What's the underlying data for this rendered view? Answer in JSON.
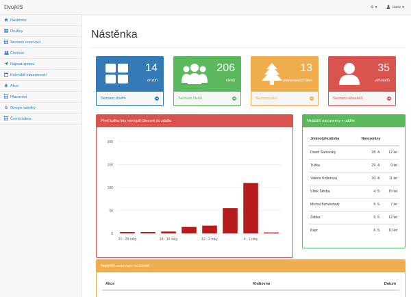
{
  "navbar": {
    "brand": "DvojkIS",
    "settings_caret": "▾",
    "user_name": "Hanz",
    "user_caret": "▾"
  },
  "sidebar": {
    "items": [
      {
        "icon": "home-icon",
        "label": "Nástěnka"
      },
      {
        "icon": "grid-icon",
        "label": "Družiny"
      },
      {
        "icon": "list-icon",
        "label": "Seznam rezervací"
      },
      {
        "icon": "users-icon",
        "label": "Členové"
      },
      {
        "icon": "send-icon",
        "label": "Napsat zprávu"
      },
      {
        "icon": "calendar-icon",
        "label": "Kalendář obsazenosti"
      },
      {
        "icon": "tree-icon",
        "label": "Akce"
      },
      {
        "icon": "list-icon",
        "label": "Hlasování"
      },
      {
        "icon": "google-icon",
        "label": "Google tabulky"
      },
      {
        "icon": "list-icon",
        "label": "Černá listina"
      }
    ]
  },
  "page": {
    "title": "Nástěnka"
  },
  "stats": [
    {
      "number": "14",
      "label": "družin",
      "link": "Seznam družin",
      "color": "#337ab7",
      "icon": "grid-icon"
    },
    {
      "number": "206",
      "label": "členů",
      "link": "Seznam členů",
      "color": "#5cb85c",
      "icon": "users-icon"
    },
    {
      "number": "13",
      "label": "plánovaných akcí",
      "link": "Seznam akcí",
      "color": "#f0ad4e",
      "icon": "tree-icon"
    },
    {
      "number": "35",
      "label": "uživatelů",
      "link": "Seznam uživatelů",
      "color": "#d9534f",
      "icon": "user-icon"
    }
  ],
  "chart_panel": {
    "title": "Před kolika lety vstoupili členové do oddílu"
  },
  "chart_data": {
    "type": "bar",
    "categories": [
      "31 - 29 roky",
      "",
      "18 - 16 roky",
      "",
      "12 - 9 roky",
      "",
      "4 - 1 roky",
      ""
    ],
    "values": [
      3,
      3,
      4,
      14,
      17,
      55,
      110,
      2
    ],
    "ylim": [
      0,
      200
    ],
    "yticks": [
      "0",
      "50",
      "100",
      "150",
      "200"
    ],
    "grid": true,
    "bar_color": "#b71c1c"
  },
  "birthdays": {
    "title": "Nejbližší narozeniny v oddíle",
    "columns": [
      "Jméno/přezdívka",
      "Narozeniny",
      ""
    ],
    "rows": [
      [
        "David Šarlovský",
        "28. 4.",
        "12 let"
      ],
      [
        "Tužka",
        "29. 4.",
        "9 let"
      ],
      [
        "Valérie Kollerová",
        "30. 4.",
        "11 let"
      ],
      [
        "Vítek Štěrba",
        "4. 5.",
        "15 let"
      ],
      [
        "Michal Brzobohatý",
        "5. 5.",
        "7 let"
      ],
      [
        "Žabka",
        "5. 5.",
        "12 let"
      ],
      [
        "Kapr",
        "6. 5.",
        "10 let"
      ]
    ]
  },
  "reservations": {
    "title": "Nejbližší rezervace na boudě",
    "columns": [
      "Akce",
      "Klubovna",
      "Datum"
    ]
  }
}
